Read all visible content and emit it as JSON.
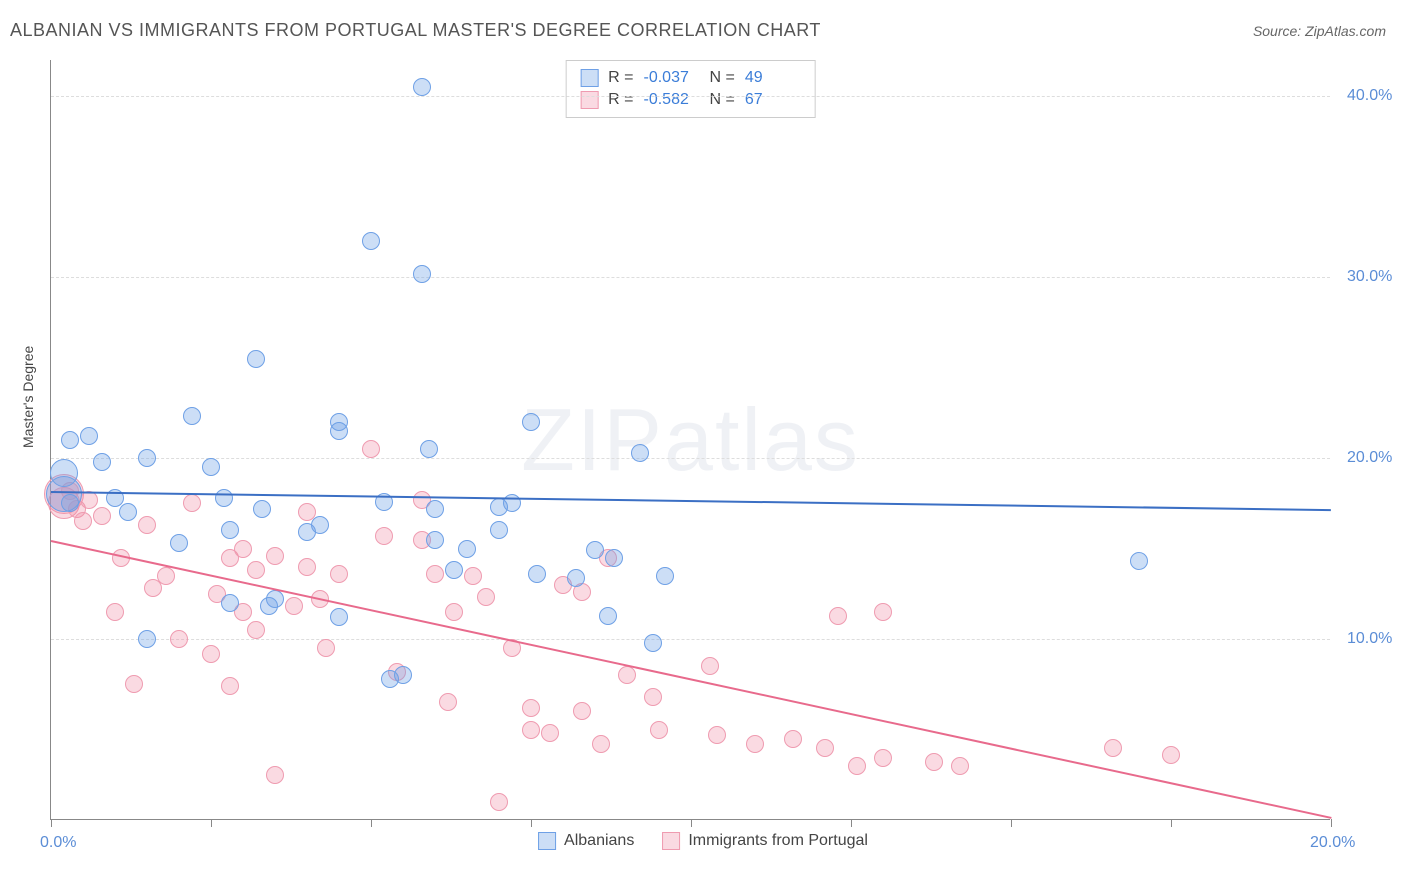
{
  "title": "ALBANIAN VS IMMIGRANTS FROM PORTUGAL MASTER'S DEGREE CORRELATION CHART",
  "source": "Source: ZipAtlas.com",
  "watermark": {
    "a": "ZIP",
    "b": "atlas"
  },
  "chart": {
    "type": "scatter",
    "ylabel": "Master's Degree",
    "xlim": [
      0,
      20
    ],
    "ylim": [
      0,
      42
    ],
    "xticks": [
      0,
      2.5,
      5,
      7.5,
      10,
      12.5,
      15,
      17.5,
      20
    ],
    "xtick_labels": {
      "0": "0.0%",
      "20": "20.0%"
    },
    "yticks": [
      10,
      20,
      30,
      40
    ],
    "ytick_labels": [
      "10.0%",
      "20.0%",
      "30.0%",
      "40.0%"
    ],
    "background_color": "#ffffff",
    "grid_color": "#dddddd",
    "axis_color": "#888888",
    "label_color": "#5b8dd6",
    "point_radius": 9,
    "series": {
      "albanians": {
        "label": "Albanians",
        "fill": "rgba(110, 160, 230, 0.35)",
        "stroke": "#6ea0e6",
        "line_color": "#3b6fc4",
        "R": "-0.037",
        "N": "49",
        "regression": {
          "x1": 0,
          "y1": 18.2,
          "x2": 20,
          "y2": 17.2
        },
        "points": [
          [
            0.2,
            19.2,
            14
          ],
          [
            0.2,
            18.0,
            18
          ],
          [
            0.3,
            21.0
          ],
          [
            0.3,
            17.5
          ],
          [
            0.6,
            21.2
          ],
          [
            0.8,
            19.8
          ],
          [
            1.0,
            17.8
          ],
          [
            1.2,
            17.0
          ],
          [
            1.5,
            20.0
          ],
          [
            1.5,
            10.0
          ],
          [
            2.0,
            15.3
          ],
          [
            2.2,
            22.3
          ],
          [
            2.5,
            19.5
          ],
          [
            2.7,
            17.8
          ],
          [
            2.8,
            12.0
          ],
          [
            2.8,
            16.0
          ],
          [
            3.2,
            25.5
          ],
          [
            3.3,
            17.2
          ],
          [
            3.4,
            11.8
          ],
          [
            3.5,
            12.2
          ],
          [
            4.0,
            15.9
          ],
          [
            4.2,
            16.3
          ],
          [
            4.5,
            21.5
          ],
          [
            4.5,
            22.0
          ],
          [
            4.5,
            11.2
          ],
          [
            5.0,
            32.0
          ],
          [
            5.2,
            17.6
          ],
          [
            5.3,
            7.8
          ],
          [
            5.5,
            8.0
          ],
          [
            5.8,
            40.5
          ],
          [
            5.8,
            30.2
          ],
          [
            5.9,
            20.5
          ],
          [
            6.0,
            17.2
          ],
          [
            6.0,
            15.5
          ],
          [
            6.3,
            13.8
          ],
          [
            6.5,
            15.0
          ],
          [
            7.0,
            17.3
          ],
          [
            7.0,
            16.0
          ],
          [
            7.2,
            17.5
          ],
          [
            7.5,
            22.0
          ],
          [
            7.6,
            13.6
          ],
          [
            8.2,
            13.4
          ],
          [
            8.5,
            14.9
          ],
          [
            8.7,
            11.3
          ],
          [
            8.8,
            14.5
          ],
          [
            9.2,
            20.3
          ],
          [
            9.4,
            9.8
          ],
          [
            9.6,
            13.5
          ],
          [
            17.0,
            14.3
          ]
        ]
      },
      "portugal": {
        "label": "Immigrants from Portugal",
        "fill": "rgba(240, 140, 165, 0.32)",
        "stroke": "#ef9bb0",
        "line_color": "#e86a8c",
        "R": "-0.582",
        "N": "67",
        "regression": {
          "x1": 0,
          "y1": 15.5,
          "x2": 20,
          "y2": 0.2
        },
        "points": [
          [
            0.2,
            18.0,
            20
          ],
          [
            0.2,
            17.5,
            16
          ],
          [
            0.3,
            18.2
          ],
          [
            0.4,
            17.2
          ],
          [
            0.5,
            16.5
          ],
          [
            0.6,
            17.7
          ],
          [
            0.8,
            16.8
          ],
          [
            1.0,
            11.5
          ],
          [
            1.1,
            14.5
          ],
          [
            1.3,
            7.5
          ],
          [
            1.5,
            16.3
          ],
          [
            1.6,
            12.8
          ],
          [
            1.8,
            13.5
          ],
          [
            2.0,
            10.0
          ],
          [
            2.2,
            17.5
          ],
          [
            2.5,
            9.2
          ],
          [
            2.6,
            12.5
          ],
          [
            2.8,
            14.5
          ],
          [
            2.8,
            7.4
          ],
          [
            3.0,
            15.0
          ],
          [
            3.0,
            11.5
          ],
          [
            3.2,
            10.5
          ],
          [
            3.2,
            13.8
          ],
          [
            3.5,
            14.6
          ],
          [
            3.5,
            2.5
          ],
          [
            3.8,
            11.8
          ],
          [
            4.0,
            17.0
          ],
          [
            4.0,
            14.0
          ],
          [
            4.2,
            12.2
          ],
          [
            4.3,
            9.5
          ],
          [
            4.5,
            13.6
          ],
          [
            5.0,
            20.5
          ],
          [
            5.2,
            15.7
          ],
          [
            5.4,
            8.2
          ],
          [
            5.8,
            17.7
          ],
          [
            5.8,
            15.5
          ],
          [
            6.0,
            13.6
          ],
          [
            6.2,
            6.5
          ],
          [
            6.3,
            11.5
          ],
          [
            6.6,
            13.5
          ],
          [
            6.8,
            12.3
          ],
          [
            7.0,
            1.0
          ],
          [
            7.2,
            9.5
          ],
          [
            7.5,
            5.0
          ],
          [
            7.5,
            6.2
          ],
          [
            7.8,
            4.8
          ],
          [
            8.0,
            13.0
          ],
          [
            8.3,
            6.0
          ],
          [
            8.3,
            12.6
          ],
          [
            8.6,
            4.2
          ],
          [
            8.7,
            14.5
          ],
          [
            9.0,
            8.0
          ],
          [
            9.4,
            6.8
          ],
          [
            9.5,
            5.0
          ],
          [
            10.3,
            8.5
          ],
          [
            10.4,
            4.7
          ],
          [
            11.0,
            4.2
          ],
          [
            11.6,
            4.5
          ],
          [
            12.1,
            4.0
          ],
          [
            12.3,
            11.3
          ],
          [
            12.6,
            3.0
          ],
          [
            13.0,
            11.5
          ],
          [
            13.0,
            3.4
          ],
          [
            13.8,
            3.2
          ],
          [
            14.2,
            3.0
          ],
          [
            16.6,
            4.0
          ],
          [
            17.5,
            3.6
          ]
        ]
      }
    }
  },
  "stats_box": {
    "rows": [
      {
        "swatch": "albanians",
        "R_label": "R =",
        "N_label": "N ="
      },
      {
        "swatch": "portugal",
        "R_label": "R =",
        "N_label": "N ="
      }
    ]
  }
}
